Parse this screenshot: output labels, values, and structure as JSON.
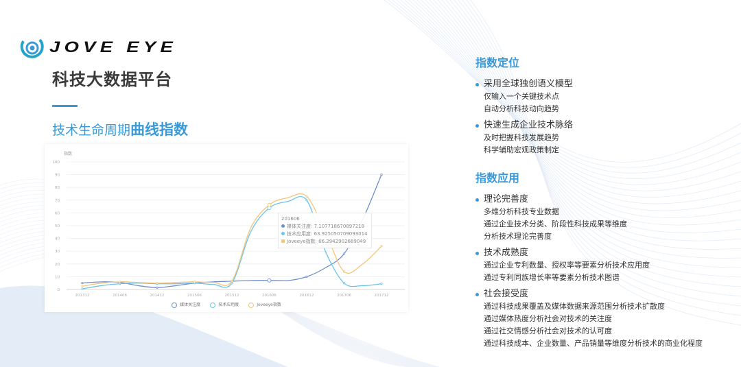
{
  "brand": {
    "logo_text": "JOVE EYE",
    "platform_title": "科技大数据平台"
  },
  "subtitle": {
    "normal": "技术生命周期",
    "bold": "曲线指数"
  },
  "colors": {
    "accent": "#3a9ad9",
    "media": "#6f8fc8",
    "tech": "#6cc3ea",
    "joveeye": "#f4c57a"
  },
  "chart_data": {
    "type": "line",
    "ylabel": "指数",
    "ylim": [
      0,
      100
    ],
    "yticks": [
      "0",
      "10",
      "20",
      "30",
      "40",
      "50",
      "60",
      "70",
      "80",
      "90",
      "100"
    ],
    "categories": [
      "201312",
      "201406",
      "201412",
      "201506",
      "201512",
      "201606",
      "201612",
      "201706",
      "201712"
    ],
    "x": [
      "201312",
      "201403",
      "201406",
      "201409",
      "201412",
      "201503",
      "201506",
      "201509",
      "201512",
      "201603",
      "201606",
      "201609",
      "201612",
      "201703",
      "201706",
      "201709",
      "201712"
    ],
    "grid": true,
    "legend_position": "bottom",
    "series": [
      {
        "name": "媒体关注度",
        "values": [
          5,
          6,
          5.5,
          3,
          1.5,
          3,
          5,
          6,
          6.5,
          7,
          7.1,
          7,
          10,
          17,
          28,
          55,
          90
        ]
      },
      {
        "name": "技术应用度",
        "values": [
          0.5,
          3,
          4.5,
          5,
          4.5,
          4.5,
          5,
          4,
          5,
          45,
          63.9,
          69,
          70,
          30,
          5,
          3,
          4.5
        ]
      },
      {
        "name": "Joveeye指数",
        "values": [
          2.5,
          5,
          6,
          5.5,
          5,
          5.5,
          6,
          5.5,
          6.5,
          48,
          66.3,
          72,
          73,
          45,
          14,
          20,
          34
        ]
      }
    ],
    "tooltip": {
      "title": "201606",
      "rows": [
        {
          "label": "媒体关注度: 7.107718670897218"
        },
        {
          "label": "技术应用度: 63.925050709093014"
        },
        {
          "label": "Joveeye指数: 66.2942902669049"
        }
      ]
    }
  },
  "right": {
    "sections": [
      {
        "title": "指数定位",
        "items": [
          {
            "head": "采用全球独创语义模型",
            "lines": [
              "仅输入一个关键技术点",
              "自动分析科技动向趋势"
            ]
          },
          {
            "head": "快速生成企业技术脉络",
            "lines": [
              "及时把握科技发展趋势",
              "科学辅助宏观政策制定"
            ]
          }
        ]
      },
      {
        "title": "指数应用",
        "items": [
          {
            "head": "理论完善度",
            "lines": [
              "多维分析科技专业数据",
              "通过企业技术分类、阶段性科技成果等维度",
              "分析技术理论完善度"
            ]
          },
          {
            "head": "技术成熟度",
            "lines": [
              "通过企业专利数量、授权率等要素分析技术应用度",
              "通过专利同族增长率等要素分析技术图谱"
            ]
          },
          {
            "head": "社会接受度",
            "lines": [
              "通过科技成果覆盖及媒体数据来源范围分析技术扩散度",
              "通过媒体热度分析社会对技术的关注度",
              "通过社交情感分析社会对技术的认可度",
              "通过科技成本、企业数量、产品销量等维度分析技术的商业化程度"
            ]
          }
        ]
      }
    ]
  }
}
